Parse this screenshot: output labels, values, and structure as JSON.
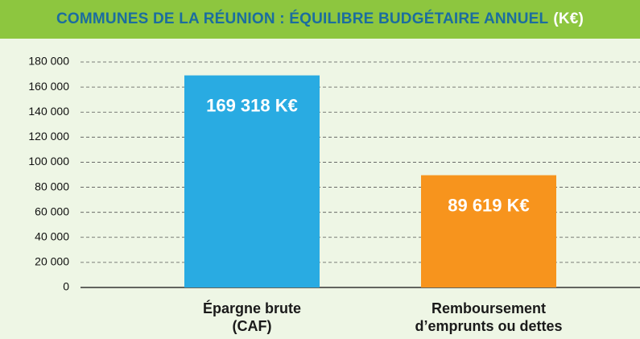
{
  "chart_data": {
    "type": "bar",
    "title": "COMMUNES DE LA RÉUNION : ÉQUILIBRE BUDGÉTAIRE ANNUEL",
    "title_unit": "(K€)",
    "categories": [
      "Épargne brute (CAF)",
      "Remboursement d’emprunts ou dettes"
    ],
    "values": [
      169318,
      89619
    ],
    "value_labels": [
      "169 318 K€",
      "89 619 K€"
    ],
    "colors": [
      "#29abe2",
      "#f7941d"
    ],
    "ylim": [
      0,
      180000
    ],
    "yticks": [
      0,
      {
        "value": 20000,
        "label": "20 000"
      },
      {
        "value": 40000,
        "label": "40 000"
      },
      {
        "value": 60000,
        "label": "60 000"
      },
      {
        "value": 80000,
        "label": "80 000"
      },
      {
        "value": 100000,
        "label": "100 000"
      },
      {
        "value": 120000,
        "label": "120 000"
      },
      {
        "value": 140000,
        "label": "140 000"
      },
      {
        "value": 160000,
        "label": "160 000"
      },
      {
        "value": 180000,
        "label": "180 000"
      }
    ],
    "grid": true
  }
}
